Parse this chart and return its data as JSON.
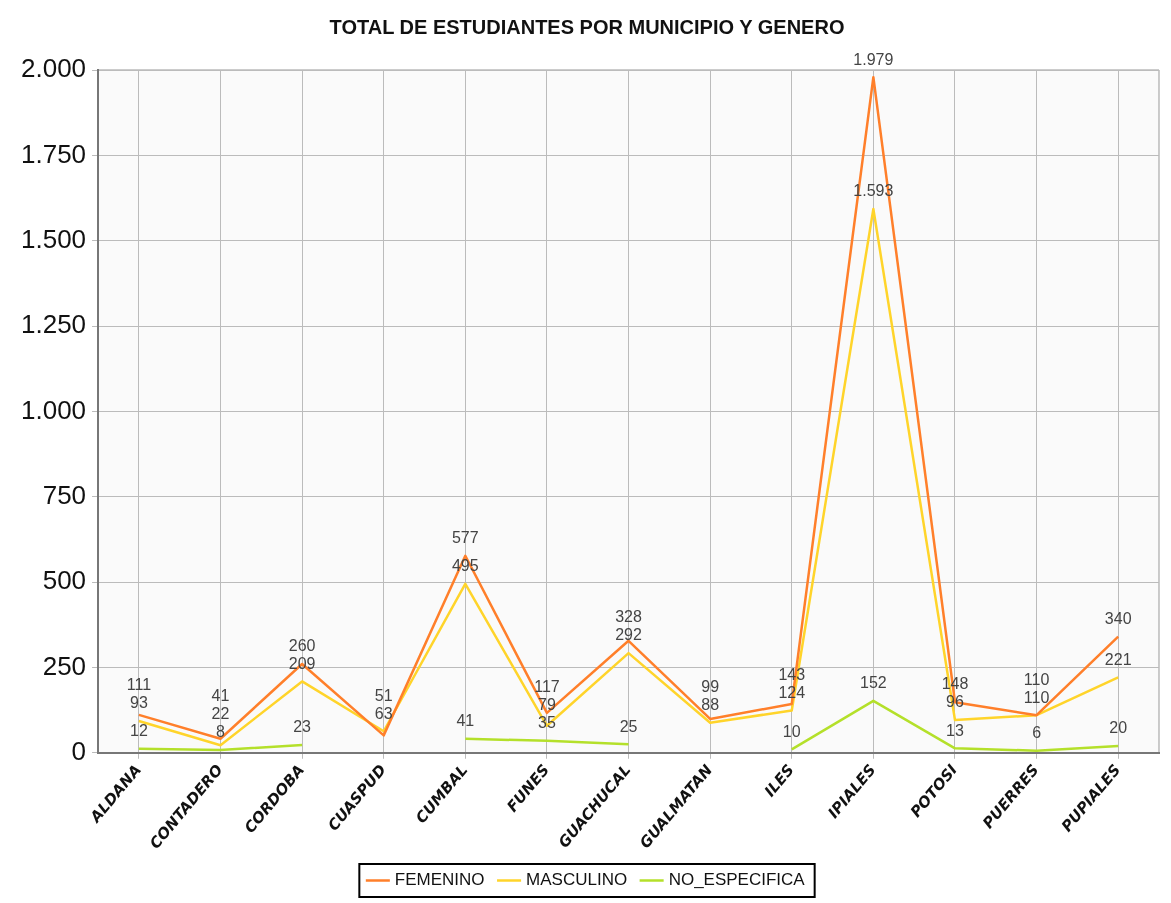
{
  "chart_data": {
    "type": "line",
    "title": "TOTAL DE ESTUDIANTES POR MUNICIPIO Y GENERO",
    "categories": [
      "ALDANA",
      "CONTADERO",
      "CORDOBA",
      "CUASPUD",
      "CUMBAL",
      "FUNES",
      "GUACHUCAL",
      "GUALMATAN",
      "ILES",
      "IPIALES",
      "POTOSI",
      "PUERRES",
      "PUPIALES"
    ],
    "series": [
      {
        "name": "FEMENINO",
        "color": "#ff7f2a",
        "values": [
          111,
          41,
          260,
          51,
          577,
          117,
          328,
          99,
          143,
          1979,
          148,
          110,
          340
        ],
        "value_labels": [
          "111",
          "41",
          "260",
          "51",
          "577",
          "117",
          "328",
          "99",
          "143",
          "1.979",
          "148",
          "110",
          "340"
        ]
      },
      {
        "name": "MASCULINO",
        "color": "#ffd42a",
        "values": [
          93,
          22,
          209,
          63,
          495,
          79,
          292,
          88,
          124,
          1593,
          96,
          110,
          221
        ],
        "value_labels": [
          "93",
          "22",
          "209",
          "63",
          "495",
          "79",
          "292",
          "88",
          "124",
          "1.593",
          "96",
          "110",
          "221"
        ]
      },
      {
        "name": "NO_ESPECIFICA",
        "color": "#b4e02a",
        "values": [
          12,
          8,
          23,
          null,
          41,
          35,
          25,
          null,
          10,
          152,
          13,
          6,
          20
        ],
        "value_labels": [
          "12",
          "8",
          "23",
          null,
          "41",
          "35",
          "25",
          null,
          "10",
          "152",
          "13",
          "6",
          "20"
        ]
      }
    ],
    "ylim": [
      0,
      2000
    ],
    "yticks": [
      {
        "value": 0,
        "label": "0"
      },
      {
        "value": 250,
        "label": "250"
      },
      {
        "value": 500,
        "label": "500"
      },
      {
        "value": 750,
        "label": "750"
      },
      {
        "value": 1000,
        "label": "1.000"
      },
      {
        "value": 1250,
        "label": "1.250"
      },
      {
        "value": 1500,
        "label": "1.500"
      },
      {
        "value": 1750,
        "label": "1.750"
      },
      {
        "value": 2000,
        "label": "2.000"
      }
    ],
    "grid": true,
    "legend": "bottom",
    "marker": "none",
    "line_style": "solid"
  }
}
